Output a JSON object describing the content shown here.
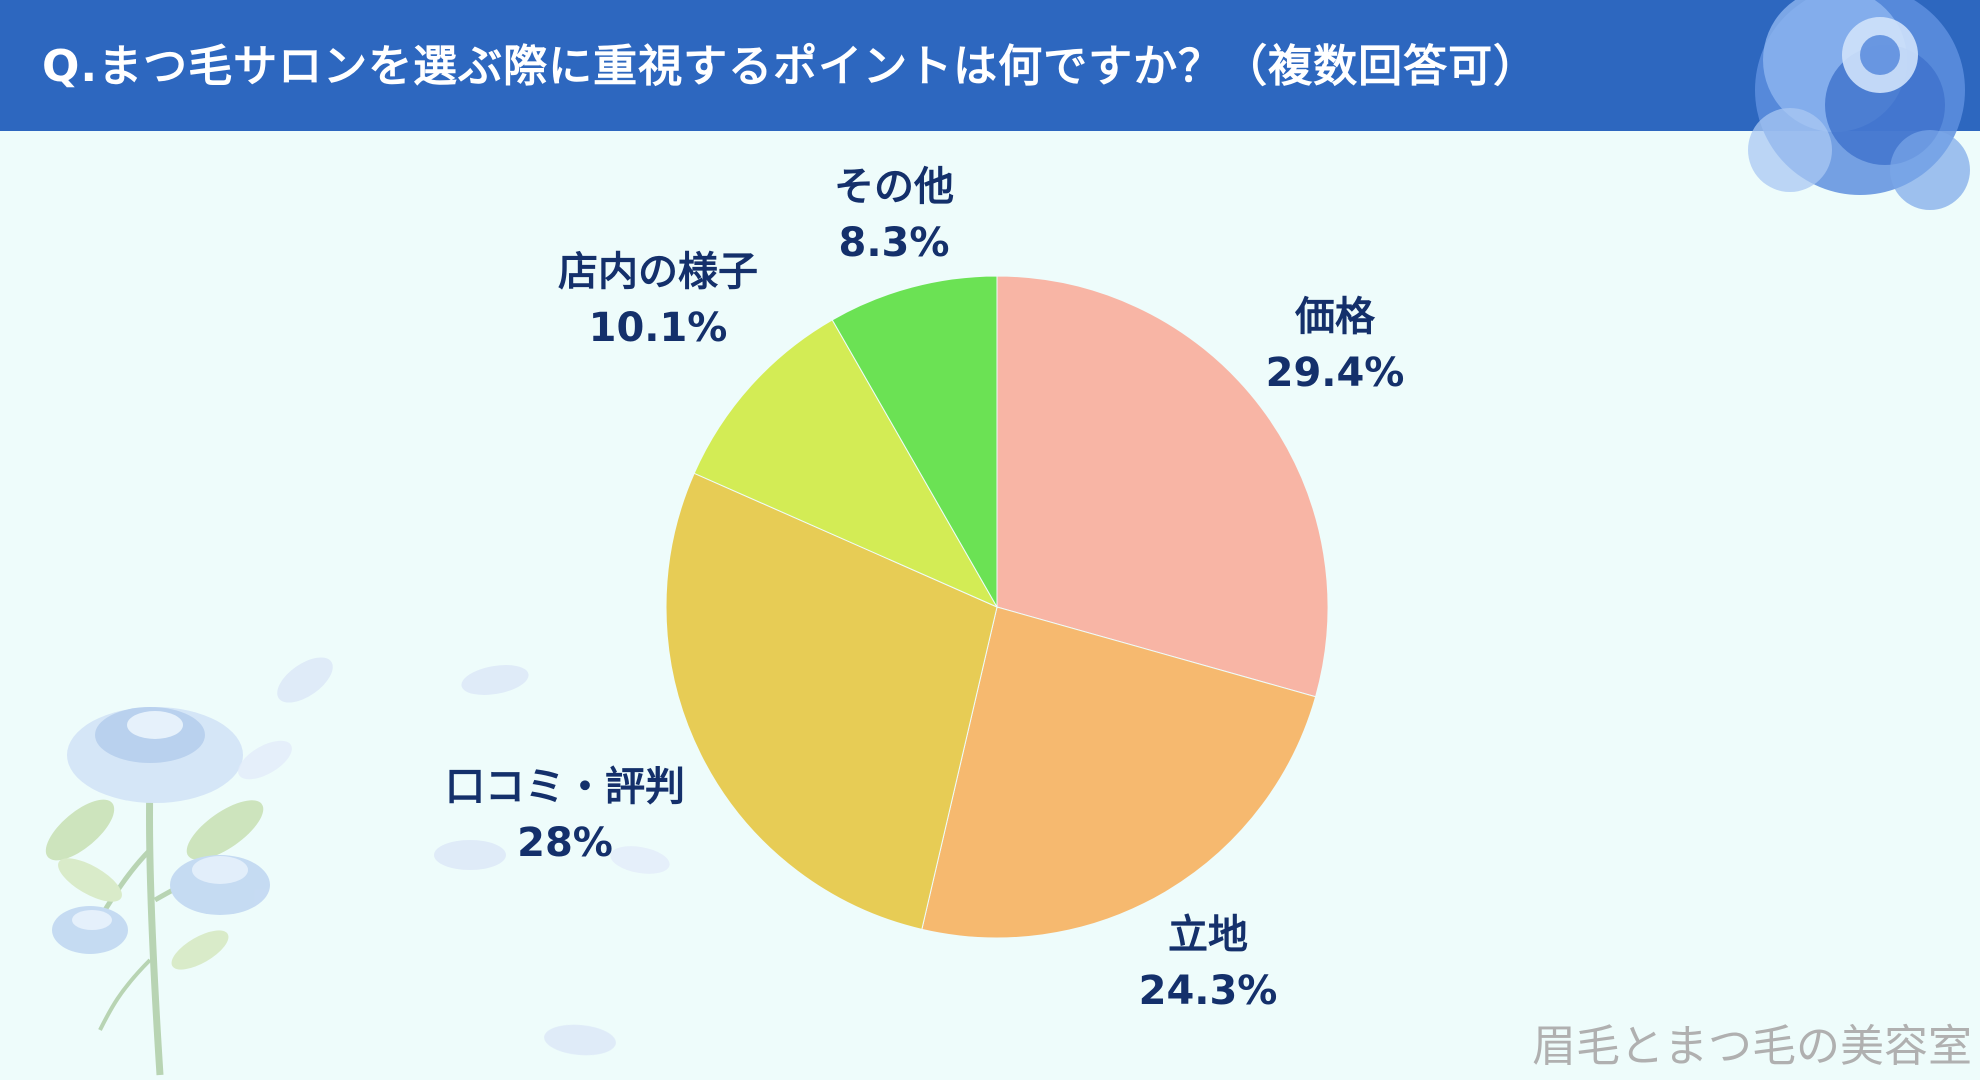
{
  "title": "Q.まつ毛サロンを選ぶ際に重視するポイントは何ですか？（複数回答可）",
  "watermark": "眉毛とまつ毛の美容室",
  "colors": {
    "header": "#2d67bf",
    "background": "#eefcfb",
    "label": "#14306b"
  },
  "chart_data": {
    "type": "pie",
    "title": "Q.まつ毛サロンを選ぶ際に重視するポイントは何ですか？（複数回答可）",
    "unit": "%",
    "start": "12 o'clock",
    "direction": "clockwise",
    "slices": [
      {
        "label": "価格",
        "value": 29.4,
        "value_label": "29.4%",
        "color": "#f8b5a5"
      },
      {
        "label": "立地",
        "value": 24.3,
        "value_label": "24.3%",
        "color": "#f6b96f"
      },
      {
        "label": "口コミ・評判",
        "value": 28,
        "value_label": "28%",
        "color": "#e7cc55"
      },
      {
        "label": "店内の様子",
        "value": 10.1,
        "value_label": "10.1%",
        "color": "#d3ec55"
      },
      {
        "label": "その他",
        "value": 8.3,
        "value_label": "8.3%",
        "color": "#6be254"
      }
    ]
  }
}
